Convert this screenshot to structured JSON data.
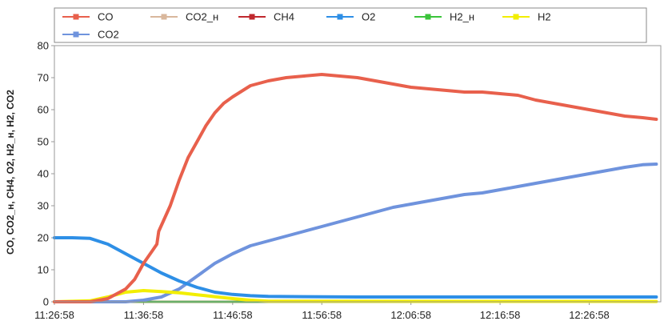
{
  "chart_data": {
    "type": "line",
    "title": "",
    "xlabel": "",
    "ylabel": "CO, CO2_н, CH4, O2, H2_н, H2, CO2",
    "ylim": [
      0,
      80
    ],
    "yticks": [
      0,
      10,
      20,
      30,
      40,
      50,
      60,
      70,
      80
    ],
    "xlim": [
      "11:26:58",
      "12:35:00"
    ],
    "xticks": [
      "11:26:58",
      "11:36:58",
      "11:46:58",
      "11:56:58",
      "12:06:58",
      "12:16:58",
      "12:26:58"
    ],
    "grid": false,
    "legend_position": "top",
    "series": [
      {
        "name": "CO",
        "color": "#e8604c",
        "x": [
          "11:26:58",
          "11:30:58",
          "11:32:58",
          "11:34:58",
          "11:35:58",
          "11:36:58",
          "11:37:58",
          "11:38:28",
          "11:38:40",
          "11:39:58",
          "11:40:58",
          "11:41:58",
          "11:42:58",
          "11:43:58",
          "11:44:58",
          "11:45:58",
          "11:46:58",
          "11:48:58",
          "11:50:58",
          "11:52:58",
          "11:54:58",
          "11:56:58",
          "11:58:58",
          "12:00:58",
          "12:02:58",
          "12:04:58",
          "12:06:58",
          "12:08:58",
          "12:10:58",
          "12:12:58",
          "12:14:58",
          "12:16:58",
          "12:18:58",
          "12:20:58",
          "12:22:58",
          "12:24:58",
          "12:26:58",
          "12:28:58",
          "12:30:58",
          "12:32:58",
          "12:34:30"
        ],
        "values": [
          0,
          0,
          1,
          4,
          7,
          12,
          16,
          18,
          22,
          30,
          38,
          45,
          50,
          55,
          59,
          62,
          64,
          67.5,
          69,
          70,
          70.5,
          71,
          70.5,
          70,
          69,
          68,
          67,
          66.5,
          66,
          65.5,
          65.5,
          65,
          64.5,
          63,
          62,
          61,
          60,
          59,
          58,
          57.5,
          57
        ]
      },
      {
        "name": "CO2",
        "color": "#6f93dd",
        "x": [
          "11:26:58",
          "11:34:58",
          "11:36:58",
          "11:38:58",
          "11:40:58",
          "11:42:58",
          "11:44:58",
          "11:46:58",
          "11:48:58",
          "11:50:58",
          "11:52:58",
          "11:54:58",
          "11:56:58",
          "11:58:58",
          "12:00:58",
          "12:02:58",
          "12:04:58",
          "12:06:58",
          "12:08:58",
          "12:10:58",
          "12:12:58",
          "12:14:58",
          "12:16:58",
          "12:18:58",
          "12:20:58",
          "12:22:58",
          "12:24:58",
          "12:26:58",
          "12:28:58",
          "12:30:58",
          "12:32:58",
          "12:34:30"
        ],
        "values": [
          0,
          0,
          0.5,
          1.5,
          4,
          8,
          12,
          15,
          17.5,
          19,
          20.5,
          22,
          23.5,
          25,
          26.5,
          28,
          29.5,
          30.5,
          31.5,
          32.5,
          33.5,
          34,
          35,
          36,
          37,
          38,
          39,
          40,
          41,
          42,
          42.8,
          43
        ]
      },
      {
        "name": "CO2_н",
        "color": "#d9b79c",
        "x": [
          "11:26:58",
          "12:34:30"
        ],
        "values": [
          0,
          0
        ]
      },
      {
        "name": "CH4",
        "color": "#c0282e",
        "x": [
          "11:26:58",
          "12:34:30"
        ],
        "values": [
          0,
          0
        ]
      },
      {
        "name": "O2",
        "color": "#2e8fe6",
        "x": [
          "11:26:58",
          "11:28:58",
          "11:30:58",
          "11:32:58",
          "11:34:58",
          "11:36:58",
          "11:38:58",
          "11:40:58",
          "11:42:58",
          "11:44:58",
          "11:46:58",
          "11:48:58",
          "11:50:58",
          "11:54:58",
          "12:00:58",
          "12:34:30"
        ],
        "values": [
          20,
          20,
          19.8,
          18,
          15,
          12,
          9,
          6.5,
          4.5,
          3,
          2.3,
          1.9,
          1.7,
          1.6,
          1.5,
          1.5
        ]
      },
      {
        "name": "H2_н",
        "color": "#3bc43b",
        "x": [
          "11:26:58",
          "12:34:30"
        ],
        "values": [
          0,
          0
        ]
      },
      {
        "name": "H2",
        "color": "#f2ee00",
        "x": [
          "11:26:58",
          "11:30:58",
          "11:32:58",
          "11:34:58",
          "11:36:58",
          "11:38:58",
          "11:40:58",
          "11:42:58",
          "11:44:58",
          "11:46:58",
          "11:48:58",
          "11:50:58",
          "12:34:30"
        ],
        "values": [
          0,
          0.3,
          1.5,
          3,
          3.5,
          3.2,
          2.8,
          2.2,
          1.6,
          1,
          0.5,
          0.2,
          0.1
        ]
      }
    ],
    "legend_rows": [
      [
        "CO",
        "CO2_н",
        "CH4",
        "O2",
        "H2_н",
        "H2"
      ],
      [
        "CO2"
      ]
    ]
  }
}
